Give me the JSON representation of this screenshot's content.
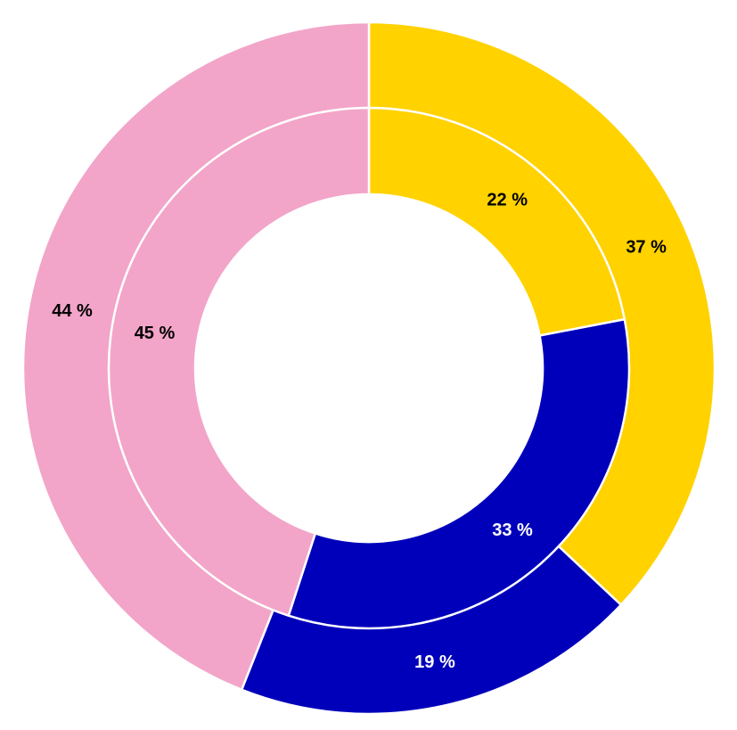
{
  "chart_data": {
    "type": "donut",
    "rings": [
      {
        "ring": "outer",
        "slices": [
          {
            "value": 37,
            "label": "37 %",
            "color": "#FFD200",
            "label_color": "#000000"
          },
          {
            "value": 19,
            "label": "19 %",
            "color": "#0000BB",
            "label_color": "#FFFFFF"
          },
          {
            "value": 44,
            "label": "44 %",
            "color": "#F2A5C8",
            "label_color": "#000000"
          }
        ]
      },
      {
        "ring": "inner",
        "slices": [
          {
            "value": 22,
            "label": "22 %",
            "color": "#FFD200",
            "label_color": "#000000"
          },
          {
            "value": 33,
            "label": "33 %",
            "color": "#0000BB",
            "label_color": "#FFFFFF"
          },
          {
            "value": 45,
            "label": "45 %",
            "color": "#F2A5C8",
            "label_color": "#000000"
          }
        ]
      }
    ],
    "start_angle": "12 o'clock",
    "direction": "clockwise",
    "legend": "none"
  }
}
